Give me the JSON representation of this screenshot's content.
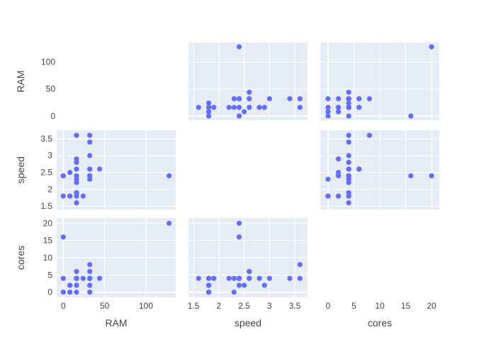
{
  "chart_data": {
    "type": "scatter",
    "subtype": "scatter-matrix",
    "dimensions": [
      "RAM",
      "speed",
      "cores"
    ],
    "diagonal_visible": false,
    "grid": true,
    "marker_color": "#636efa",
    "panel_background": "#e5ecf6",
    "axis_ranges": {
      "RAM": [
        -8,
        136
      ],
      "speed": [
        1.4,
        3.75
      ],
      "cores": [
        -1.5,
        21.5
      ]
    },
    "ticks": {
      "RAM": [
        0,
        50,
        100
      ],
      "RAM_x": [
        0,
        50,
        100
      ],
      "speed": [
        1.5,
        2,
        2.5,
        3,
        3.5
      ],
      "speed_x": [
        1.5,
        2,
        2.5,
        3,
        3.5
      ],
      "cores": [
        0,
        5,
        10,
        15,
        20
      ],
      "cores_x": [
        0,
        5,
        10,
        15,
        20
      ]
    },
    "points": [
      {
        "RAM": 128,
        "speed": 2.4,
        "cores": 20
      },
      {
        "RAM": 0,
        "speed": 2.4,
        "cores": 16
      },
      {
        "RAM": 0,
        "speed": 1.8,
        "cores": 0
      },
      {
        "RAM": 0,
        "speed": 2.4,
        "cores": 4
      },
      {
        "RAM": 8,
        "speed": 1.8,
        "cores": 2
      },
      {
        "RAM": 8,
        "speed": 2.5,
        "cores": 2
      },
      {
        "RAM": 8,
        "speed": 1.8,
        "cores": 0
      },
      {
        "RAM": 16,
        "speed": 3.6,
        "cores": 4
      },
      {
        "RAM": 16,
        "speed": 2.9,
        "cores": 2
      },
      {
        "RAM": 16,
        "speed": 2.8,
        "cores": 4
      },
      {
        "RAM": 16,
        "speed": 2.6,
        "cores": 6
      },
      {
        "RAM": 16,
        "speed": 2.3,
        "cores": 4
      },
      {
        "RAM": 16,
        "speed": 2.2,
        "cores": 4
      },
      {
        "RAM": 16,
        "speed": 1.9,
        "cores": 4
      },
      {
        "RAM": 16,
        "speed": 1.8,
        "cores": 0
      },
      {
        "RAM": 16,
        "speed": 1.6,
        "cores": 4
      },
      {
        "RAM": 16,
        "speed": 1.8,
        "cores": 2
      },
      {
        "RAM": 16,
        "speed": 2.4,
        "cores": 4
      },
      {
        "RAM": 24,
        "speed": 1.8,
        "cores": 4
      },
      {
        "RAM": 32,
        "speed": 3.6,
        "cores": 8
      },
      {
        "RAM": 32,
        "speed": 3.4,
        "cores": 4
      },
      {
        "RAM": 32,
        "speed": 3.0,
        "cores": 4
      },
      {
        "RAM": 32,
        "speed": 2.6,
        "cores": 6
      },
      {
        "RAM": 32,
        "speed": 2.4,
        "cores": 4
      },
      {
        "RAM": 32,
        "speed": 2.3,
        "cores": 0
      },
      {
        "RAM": 32,
        "speed": 2.4,
        "cores": 4
      },
      {
        "RAM": 32,
        "speed": 2.4,
        "cores": 2
      },
      {
        "RAM": 32,
        "speed": 2.6,
        "cores": 4
      },
      {
        "RAM": 44,
        "speed": 2.6,
        "cores": 4
      },
      {
        "RAM": 16,
        "speed": 1.8,
        "cores": 4
      }
    ]
  }
}
